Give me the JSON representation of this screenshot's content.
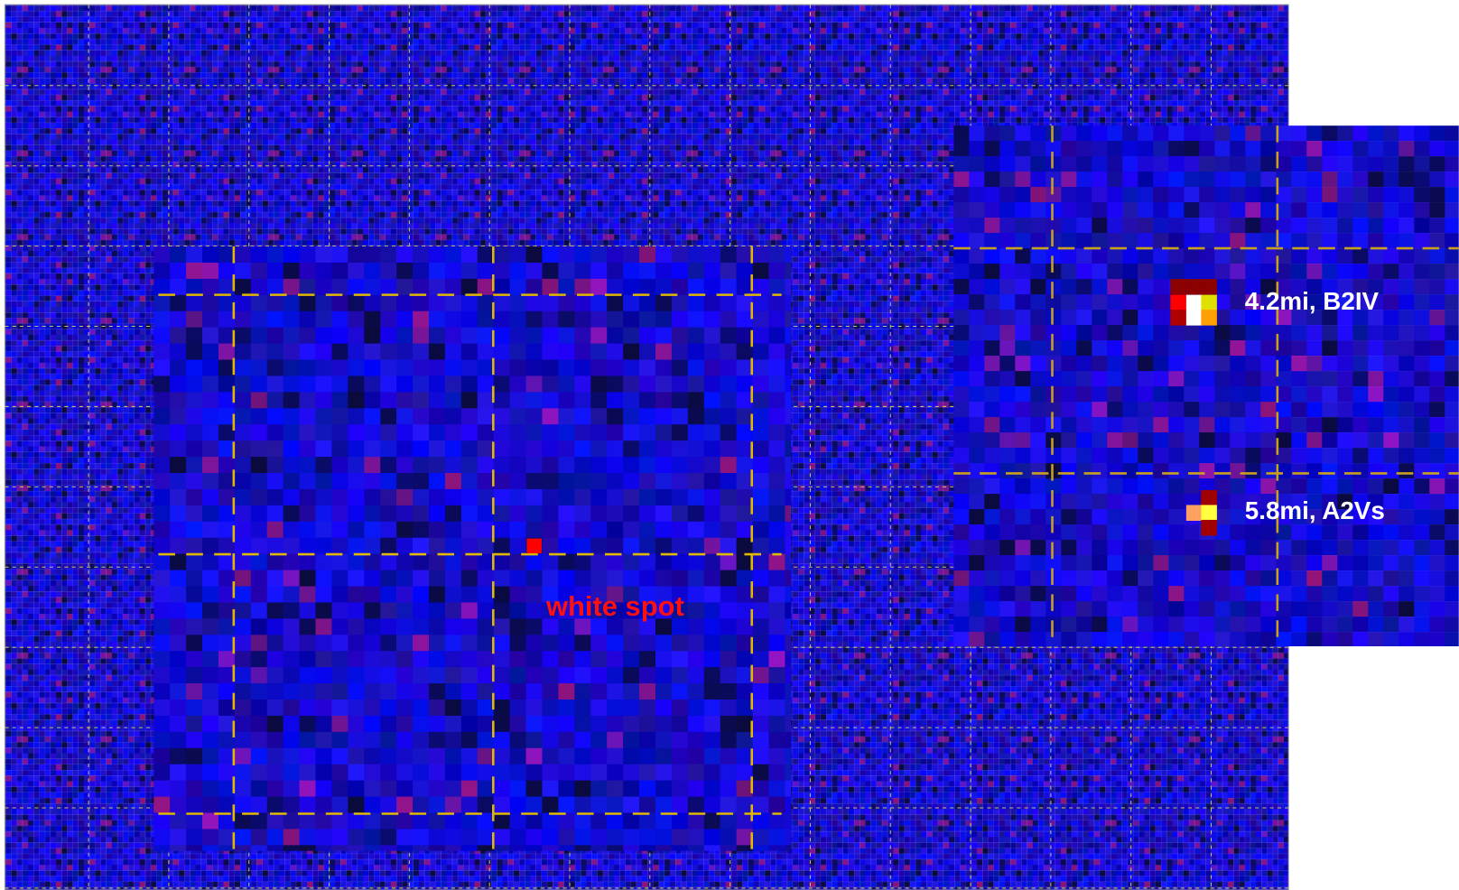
{
  "annotations": {
    "spot_label": "white spot",
    "star_1": "4.2mi, B2IV",
    "star_2": "5.8mi, A2Vs"
  }
}
